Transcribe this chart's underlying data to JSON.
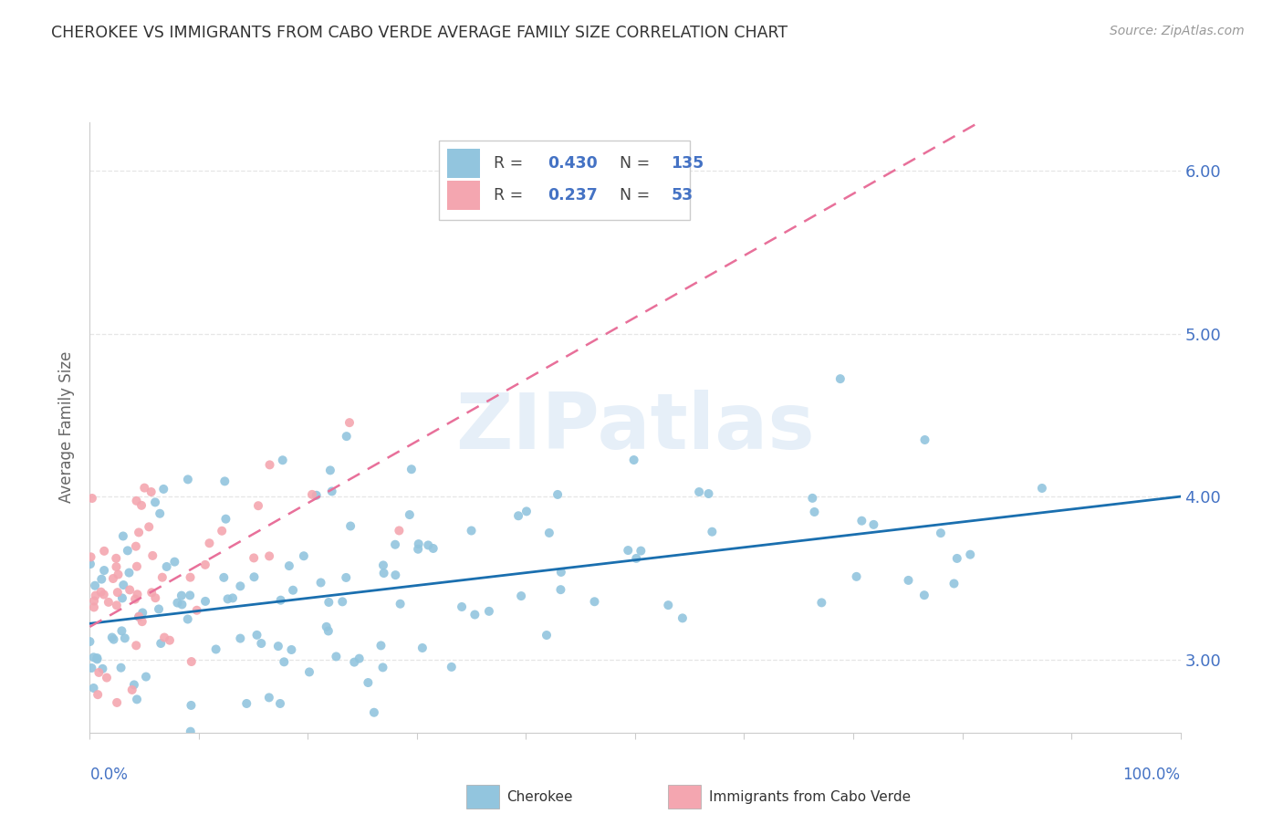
{
  "title": "CHEROKEE VS IMMIGRANTS FROM CABO VERDE AVERAGE FAMILY SIZE CORRELATION CHART",
  "source": "Source: ZipAtlas.com",
  "ylabel": "Average Family Size",
  "yticks": [
    3.0,
    4.0,
    5.0,
    6.0
  ],
  "xlim": [
    0.0,
    1.0
  ],
  "ylim": [
    2.55,
    6.3
  ],
  "cherokee_color": "#92c5de",
  "cabo_color": "#f4a6b0",
  "cherokee_line_color": "#1a6faf",
  "cabo_line_color": "#e8709a",
  "cherokee_R": 0.43,
  "cherokee_N": 135,
  "cabo_R": 0.237,
  "cabo_N": 53,
  "cherokee_intercept": 3.22,
  "cherokee_slope": 0.78,
  "cabo_intercept": 3.2,
  "cabo_slope": 3.8,
  "watermark": "ZIPatlas",
  "background_color": "#ffffff",
  "grid_color": "#e0e0e0",
  "title_color": "#333333",
  "source_color": "#999999",
  "tick_label_color": "#4472c4",
  "axis_label_color": "#666666"
}
